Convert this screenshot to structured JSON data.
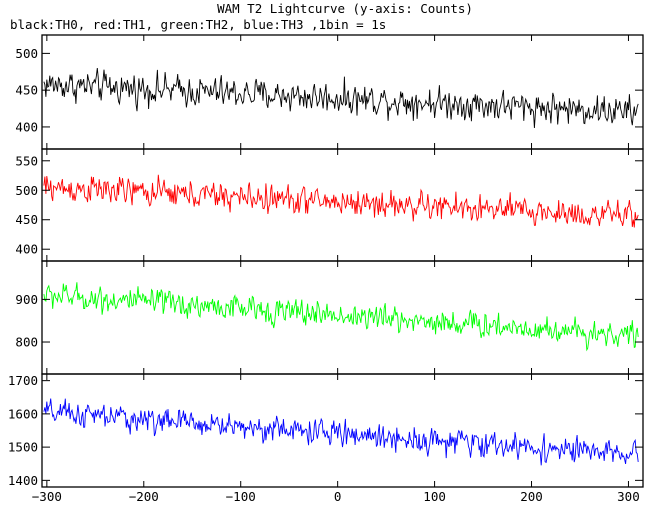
{
  "title": "WAM T2 Lightcurve (y-axis: Counts)",
  "subtitle": "black:TH0, red:TH1, green:TH2, blue:TH3 ,1bin = 1s",
  "chart_data": {
    "type": "line",
    "title": "WAM T2 Lightcurve (y-axis: Counts)",
    "subtitle": "black:TH0, red:TH1, green:TH2, blue:TH3 ,1bin = 1s",
    "xlabel": "",
    "ylabel": "Counts",
    "xlim": [
      -305,
      315
    ],
    "x_ticks": [
      -300,
      -200,
      -100,
      0,
      100,
      200,
      300
    ],
    "bin_seconds": 1,
    "grid": false,
    "series": [
      {
        "name": "TH0",
        "color": "#000000",
        "ylim": [
          370,
          525
        ],
        "y_ticks": [
          400,
          450,
          500
        ],
        "trend_start": 458,
        "trend_end": 420,
        "noise_amplitude": 22
      },
      {
        "name": "TH1",
        "color": "#ff0000",
        "ylim": [
          380,
          570
        ],
        "y_ticks": [
          400,
          450,
          500,
          550
        ],
        "trend_start": 505,
        "trend_end": 455,
        "noise_amplitude": 25
      },
      {
        "name": "TH2",
        "color": "#00ff00",
        "ylim": [
          725,
          990
        ],
        "y_ticks": [
          800,
          900
        ],
        "trend_start": 910,
        "trend_end": 815,
        "noise_amplitude": 32
      },
      {
        "name": "TH3",
        "color": "#0000ff",
        "ylim": [
          1380,
          1720
        ],
        "y_ticks": [
          1400,
          1500,
          1600,
          1700
        ],
        "trend_start": 1605,
        "trend_end": 1475,
        "noise_amplitude": 40
      }
    ]
  }
}
